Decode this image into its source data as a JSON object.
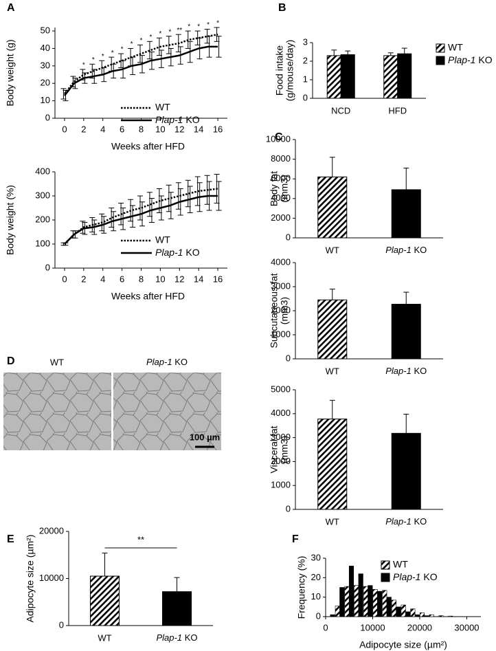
{
  "chart_data": [
    {
      "type": "line",
      "panel": "A",
      "ylabel": "Body weight (g)",
      "xlabel": "Weeks after HFD",
      "x": [
        0,
        1,
        2,
        3,
        4,
        5,
        6,
        7,
        8,
        9,
        10,
        11,
        12,
        13,
        14,
        15,
        16
      ],
      "xlim": [
        -1,
        17
      ],
      "xticks": [
        0,
        2,
        4,
        6,
        8,
        10,
        12,
        14,
        16
      ],
      "ylim": [
        0,
        52
      ],
      "yticks": [
        0,
        10,
        20,
        30,
        40,
        50
      ],
      "legend": "lower-right",
      "series": [
        {
          "name": "WT",
          "color": "#000000",
          "dash": "dotted",
          "values": [
            14,
            21,
            25,
            27,
            29,
            31,
            33,
            35,
            37,
            39,
            41,
            42,
            43,
            45,
            46,
            47,
            48
          ],
          "errors": [
            3,
            3,
            3,
            4,
            4,
            4,
            4,
            5,
            5,
            5,
            5,
            5,
            5,
            5,
            4,
            4,
            4
          ]
        },
        {
          "name": "Plap-1 KO",
          "color": "#000000",
          "dash": "solid",
          "values": [
            13,
            20,
            23,
            24,
            25,
            27,
            28,
            30,
            31,
            33,
            34,
            35,
            36,
            38,
            40,
            41,
            41
          ],
          "errors": [
            3,
            3,
            3,
            4,
            4,
            4,
            5,
            5,
            5,
            5,
            5,
            5,
            5,
            6,
            6,
            6,
            6
          ]
        }
      ],
      "significance": [
        {
          "x": 2,
          "label": "*"
        },
        {
          "x": 3,
          "label": "*"
        },
        {
          "x": 4,
          "label": "*"
        },
        {
          "x": 5,
          "label": "*"
        },
        {
          "x": 6,
          "label": "*"
        },
        {
          "x": 7,
          "label": "*"
        },
        {
          "x": 8,
          "label": "*"
        },
        {
          "x": 9,
          "label": "*"
        },
        {
          "x": 10,
          "label": "*"
        },
        {
          "x": 11,
          "label": "*"
        },
        {
          "x": 12,
          "label": "**"
        },
        {
          "x": 13,
          "label": "*"
        },
        {
          "x": 14,
          "label": "*"
        },
        {
          "x": 15,
          "label": "*"
        },
        {
          "x": 16,
          "label": "*"
        }
      ]
    },
    {
      "type": "line",
      "ylabel": "Body weight (%)",
      "xlabel": "Weeks after HFD",
      "x": [
        0,
        1,
        2,
        3,
        4,
        5,
        6,
        7,
        8,
        9,
        10,
        11,
        12,
        13,
        14,
        15,
        16
      ],
      "xlim": [
        -1,
        17
      ],
      "xticks": [
        0,
        2,
        4,
        6,
        8,
        10,
        12,
        14,
        16
      ],
      "ylim": [
        0,
        400
      ],
      "yticks": [
        0,
        100,
        200,
        300,
        400
      ],
      "legend": "center-right",
      "series": [
        {
          "name": "WT",
          "color": "#000000",
          "dash": "dotted",
          "values": [
            100,
            140,
            170,
            180,
            190,
            210,
            225,
            240,
            250,
            265,
            280,
            290,
            300,
            310,
            320,
            325,
            330
          ],
          "errors": [
            5,
            15,
            25,
            30,
            35,
            40,
            45,
            45,
            50,
            50,
            50,
            55,
            55,
            55,
            60,
            60,
            60
          ]
        },
        {
          "name": "Plap-1 KO",
          "color": "#000000",
          "dash": "solid",
          "values": [
            100,
            140,
            165,
            170,
            180,
            195,
            205,
            215,
            225,
            240,
            250,
            260,
            275,
            285,
            295,
            300,
            300
          ],
          "errors": [
            5,
            15,
            25,
            30,
            35,
            40,
            45,
            45,
            50,
            50,
            50,
            55,
            55,
            55,
            60,
            60,
            60
          ]
        }
      ]
    },
    {
      "type": "bar",
      "panel": "B",
      "ylabel": [
        "Food intake",
        "(g/mouse/day)"
      ],
      "categories": [
        "NCD",
        "HFD"
      ],
      "ylim": [
        0,
        3
      ],
      "yticks": [
        0,
        1,
        2,
        3
      ],
      "legend": "outside-right",
      "series": [
        {
          "name": "WT",
          "color": "#000000",
          "fill": "hatched",
          "values": [
            2.3,
            2.3
          ],
          "errors": [
            0.3,
            0.15
          ]
        },
        {
          "name": "Plap-1 KO",
          "color": "#000000",
          "values": [
            2.35,
            2.4
          ],
          "errors": [
            0.2,
            0.3
          ]
        }
      ]
    },
    {
      "type": "bar",
      "panel": "C",
      "ylabel": [
        "Body fat",
        "(mm3)"
      ],
      "categories": [
        "WT",
        "Plap-1 KO"
      ],
      "ylim": [
        0,
        10000
      ],
      "yticks": [
        0,
        2000,
        4000,
        6000,
        8000,
        10000
      ],
      "series": [
        {
          "color": "#000000",
          "fills": [
            "hatched",
            "solid"
          ],
          "values": [
            6200,
            4900
          ],
          "errors": [
            2000,
            2200
          ]
        }
      ]
    },
    {
      "type": "bar",
      "ylabel": [
        "Subcutaneous fat",
        "(mm3)"
      ],
      "categories": [
        "WT",
        "Plap-1 KO"
      ],
      "ylim": [
        0,
        4000
      ],
      "yticks": [
        0,
        1000,
        2000,
        3000,
        4000
      ],
      "series": [
        {
          "color": "#000000",
          "fills": [
            "hatched",
            "solid"
          ],
          "values": [
            2450,
            2270
          ],
          "errors": [
            450,
            500
          ]
        }
      ]
    },
    {
      "type": "bar",
      "ylabel": [
        "Visceral fat",
        "(mm3)"
      ],
      "categories": [
        "WT",
        "Plap-1 KO"
      ],
      "ylim": [
        0,
        5000
      ],
      "yticks": [
        0,
        1000,
        2000,
        3000,
        4000,
        5000
      ],
      "series": [
        {
          "color": "#000000",
          "fills": [
            "hatched",
            "solid"
          ],
          "values": [
            3780,
            3180
          ],
          "errors": [
            780,
            800
          ]
        }
      ]
    },
    {
      "type": "bar",
      "panel": "E",
      "ylabel": "Adipocyte size (µm²)",
      "categories": [
        "WT",
        "Plap-1 KO"
      ],
      "ylim": [
        0,
        20000
      ],
      "yticks": [
        0,
        10000,
        20000
      ],
      "series": [
        {
          "color": "#000000",
          "fills": [
            "hatched",
            "solid"
          ],
          "values": [
            10500,
            7200
          ],
          "errors": [
            4900,
            3000
          ]
        }
      ],
      "bracket": {
        "from": 0,
        "to": 1,
        "label": "**"
      }
    },
    {
      "type": "histogram",
      "panel": "F",
      "ylabel": "Frequency (%)",
      "xlabel": "Adipocyte size (µm²)",
      "x": [
        1000,
        3000,
        5000,
        7000,
        9000,
        11000,
        13000,
        15000,
        17000,
        19000,
        21000,
        23000,
        25000,
        27000
      ],
      "xlim": [
        0,
        33000
      ],
      "xticks": [
        0,
        10000,
        20000,
        30000
      ],
      "ylim": [
        0,
        30
      ],
      "yticks": [
        0,
        10,
        20,
        30
      ],
      "legend": "upper-center",
      "series": [
        {
          "name": "WT",
          "color": "#000000",
          "fill": "hatched",
          "values": [
            0,
            5.5,
            15.5,
            16,
            15.5,
            14,
            13.5,
            8.5,
            6,
            4,
            2,
            1,
            0.5,
            0.3
          ]
        },
        {
          "name": "Plap-1 KO",
          "color": "#000000",
          "values": [
            1,
            15,
            26,
            22,
            16,
            13,
            10,
            5,
            2.5,
            1,
            0.5,
            0,
            0,
            0
          ]
        }
      ]
    }
  ],
  "micrograph": {
    "panel": "D",
    "labels": [
      "WT",
      "Plap-1 KO"
    ],
    "scale_bar": "100 µm"
  }
}
